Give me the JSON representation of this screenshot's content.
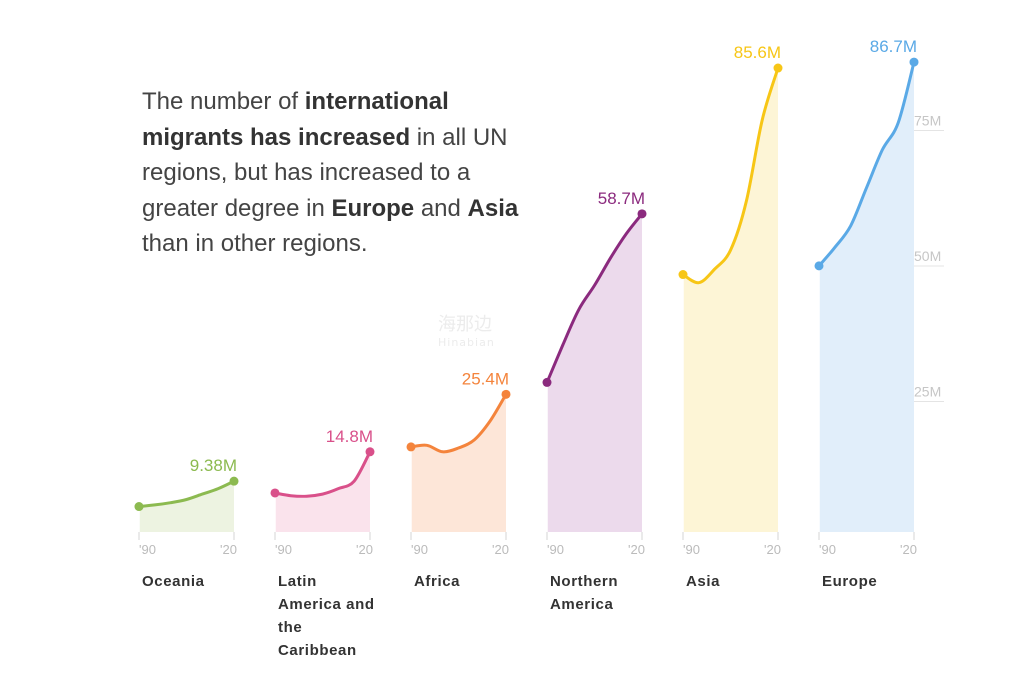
{
  "headline": {
    "p1": "The number of ",
    "b1": "international migrants has increased",
    "p2": " in all UN regions, but has increased to a greater degree in ",
    "b2": "Europe",
    "p3": " and ",
    "b3": "Asia",
    "p4": " than in other regions."
  },
  "watermark": {
    "line1": "海那边",
    "line2": "Hinabian"
  },
  "chart_data": {
    "type": "area",
    "unit": "M",
    "ylim": [
      0,
      90
    ],
    "y_ticks": [
      25,
      50,
      75
    ],
    "y_tick_labels": [
      "25M",
      "50M",
      "75M"
    ],
    "x_tick_labels": [
      "'90",
      "'20"
    ],
    "x": [
      1990,
      1995,
      2000,
      2005,
      2010,
      2015,
      2020
    ],
    "grid": false,
    "legend": "none",
    "series": [
      {
        "name": "Oceania",
        "color": "#8cba50",
        "fill": "#edf3e1",
        "values": [
          4.7,
          5.0,
          5.4,
          6.0,
          7.0,
          8.0,
          9.38
        ],
        "end_label": "9.38M"
      },
      {
        "name": "Latin America and the Caribbean",
        "color": "#d9508a",
        "fill": "#fae3ec",
        "values": [
          7.2,
          6.7,
          6.6,
          7.0,
          8.0,
          9.4,
          14.8
        ],
        "end_label": "14.8M"
      },
      {
        "name": "Africa",
        "color": "#f4843c",
        "fill": "#fde6d8",
        "values": [
          15.7,
          16.0,
          14.8,
          15.5,
          17.0,
          20.5,
          25.4
        ],
        "end_label": "25.4M"
      },
      {
        "name": "Northern America",
        "color": "#8b2a7e",
        "fill": "#ecdaec",
        "values": [
          27.6,
          34.5,
          41.0,
          45.5,
          50.5,
          55.0,
          58.7
        ],
        "end_label": "58.7M"
      },
      {
        "name": "Asia",
        "color": "#f7c616",
        "fill": "#fdf5d6",
        "values": [
          47.5,
          46.0,
          48.5,
          52.0,
          61.0,
          76.0,
          85.6
        ],
        "end_label": "85.6M"
      },
      {
        "name": "Europe",
        "color": "#5aa9e6",
        "fill": "#e1eefa",
        "values": [
          49.1,
          52.5,
          56.5,
          63.5,
          70.5,
          75.5,
          86.7
        ],
        "end_label": "86.7M"
      }
    ],
    "region_labels": [
      [
        "Oceania"
      ],
      [
        "Latin",
        "America and",
        "the",
        "Caribbean"
      ],
      [
        "Africa"
      ],
      [
        "Northern",
        "America"
      ],
      [
        "Asia"
      ],
      [
        "Europe"
      ]
    ]
  }
}
